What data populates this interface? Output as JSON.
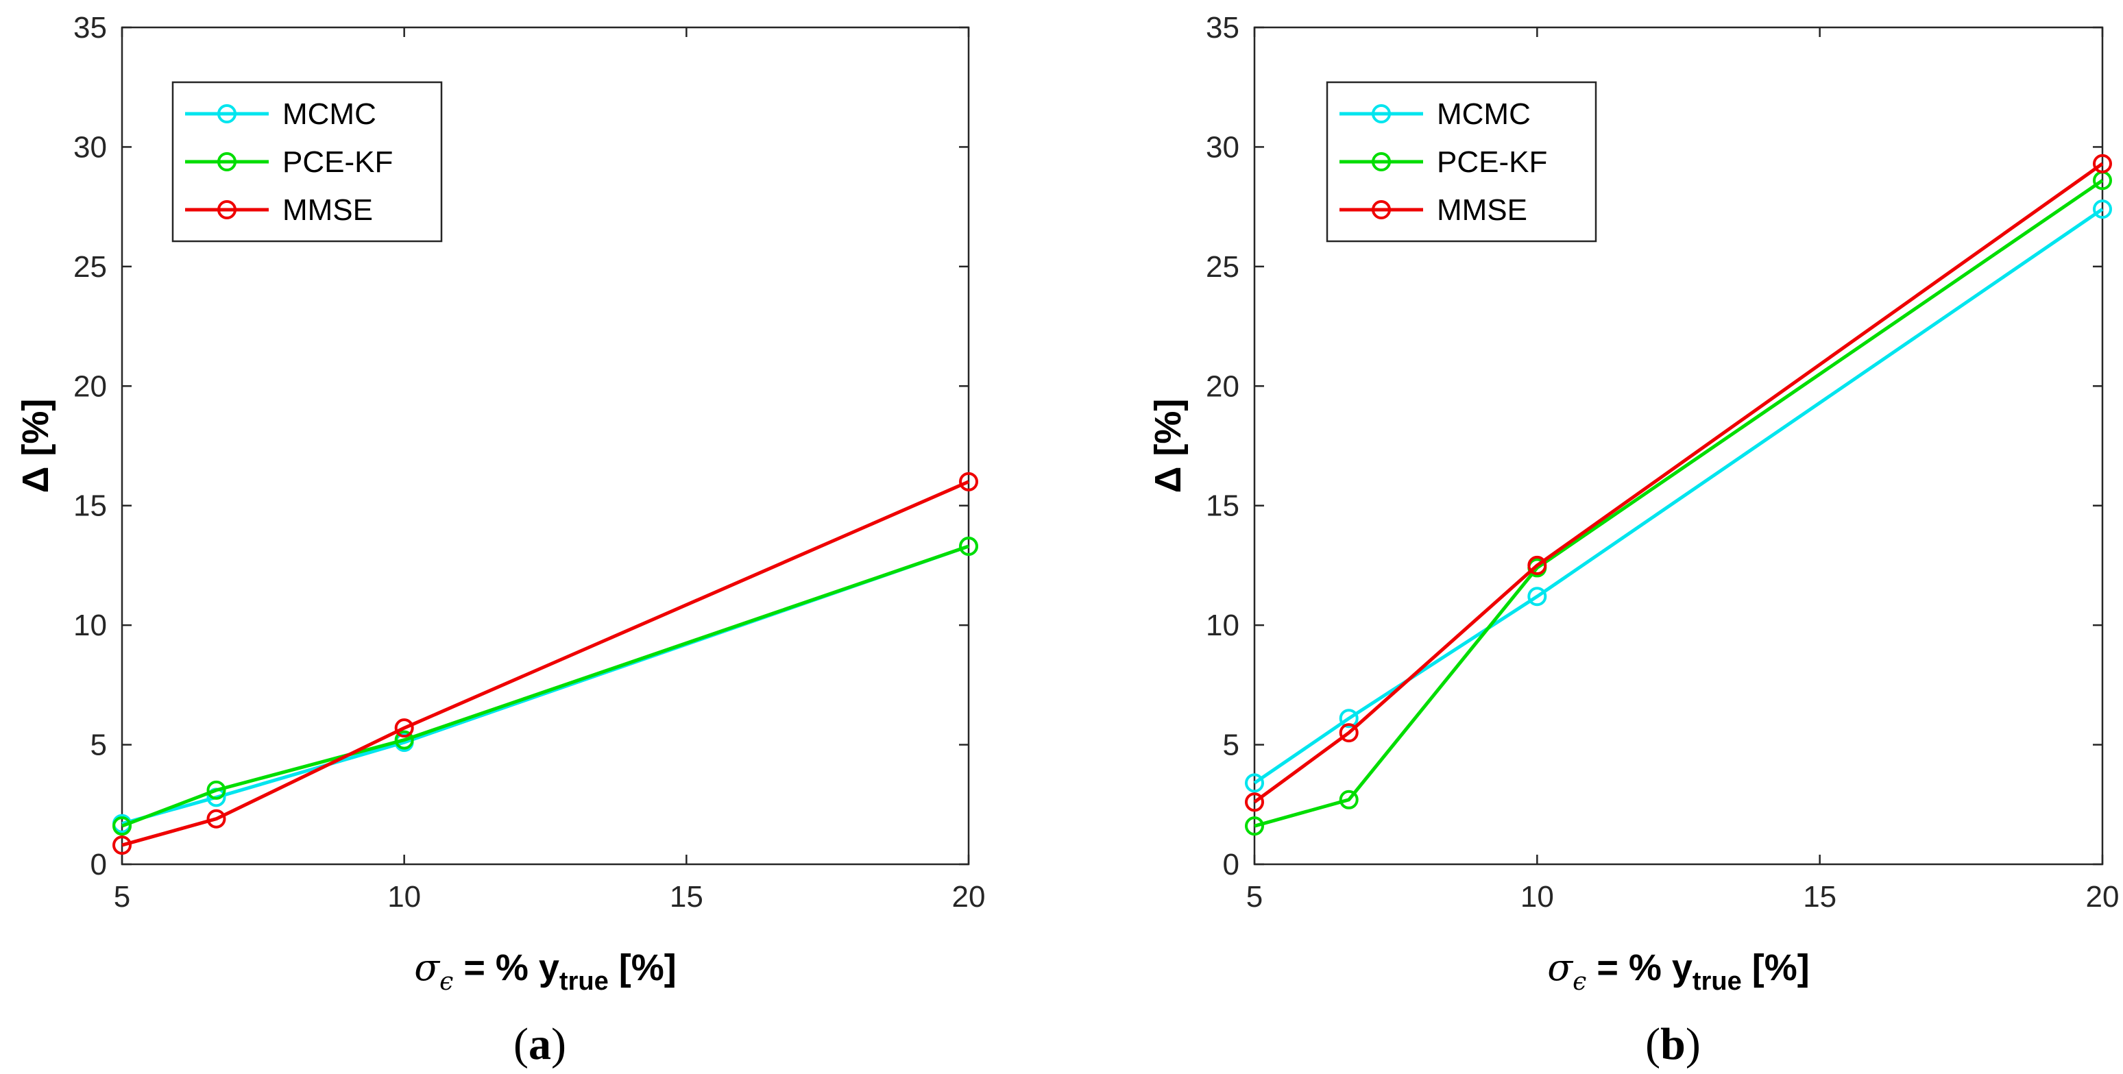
{
  "colors": {
    "MCMC": "#00e5ee",
    "PCE-KF": "#00dd00",
    "MMSE": "#ee0000",
    "axis": "#262626"
  },
  "chart_data": [
    {
      "type": "line",
      "panel_label": "a",
      "panel_paren_open": "(",
      "panel_paren_close": ")",
      "x": [
        5,
        6.67,
        10,
        20
      ],
      "xlim": [
        5,
        20
      ],
      "ylim": [
        0,
        35
      ],
      "xticks": [
        "5",
        "10",
        "15",
        "20"
      ],
      "yticks": [
        "0",
        "5",
        "10",
        "15",
        "20",
        "25",
        "30",
        "35"
      ],
      "ylabel": "Δ [%]",
      "xlabel": {
        "sigma": "σ",
        "sigma_sub": "ϵ",
        "text": " = % y",
        "sub": "true",
        "tail": " [%]"
      },
      "legend_position": "top-left",
      "series": [
        {
          "name": "MCMC",
          "values": [
            1.7,
            2.8,
            5.1,
            13.3
          ]
        },
        {
          "name": "PCE-KF",
          "values": [
            1.6,
            3.1,
            5.2,
            13.3
          ]
        },
        {
          "name": "MMSE",
          "values": [
            0.8,
            1.9,
            5.7,
            16.0
          ]
        }
      ]
    },
    {
      "type": "line",
      "panel_label": "b",
      "panel_paren_open": "(",
      "panel_paren_close": ")",
      "x": [
        5,
        6.67,
        10,
        20
      ],
      "xlim": [
        5,
        20
      ],
      "ylim": [
        0,
        35
      ],
      "xticks": [
        "5",
        "10",
        "15",
        "20"
      ],
      "yticks": [
        "0",
        "5",
        "10",
        "15",
        "20",
        "25",
        "30",
        "35"
      ],
      "ylabel": "Δ [%]",
      "xlabel": {
        "sigma": "σ",
        "sigma_sub": "ϵ",
        "text": " = % y",
        "sub": "true",
        "tail": " [%]"
      },
      "legend_position": "top-left",
      "series": [
        {
          "name": "MCMC",
          "values": [
            3.4,
            6.1,
            11.2,
            27.4
          ]
        },
        {
          "name": "PCE-KF",
          "values": [
            1.6,
            2.7,
            12.4,
            28.6
          ]
        },
        {
          "name": "MMSE",
          "values": [
            2.6,
            5.5,
            12.5,
            29.3
          ]
        }
      ]
    }
  ]
}
